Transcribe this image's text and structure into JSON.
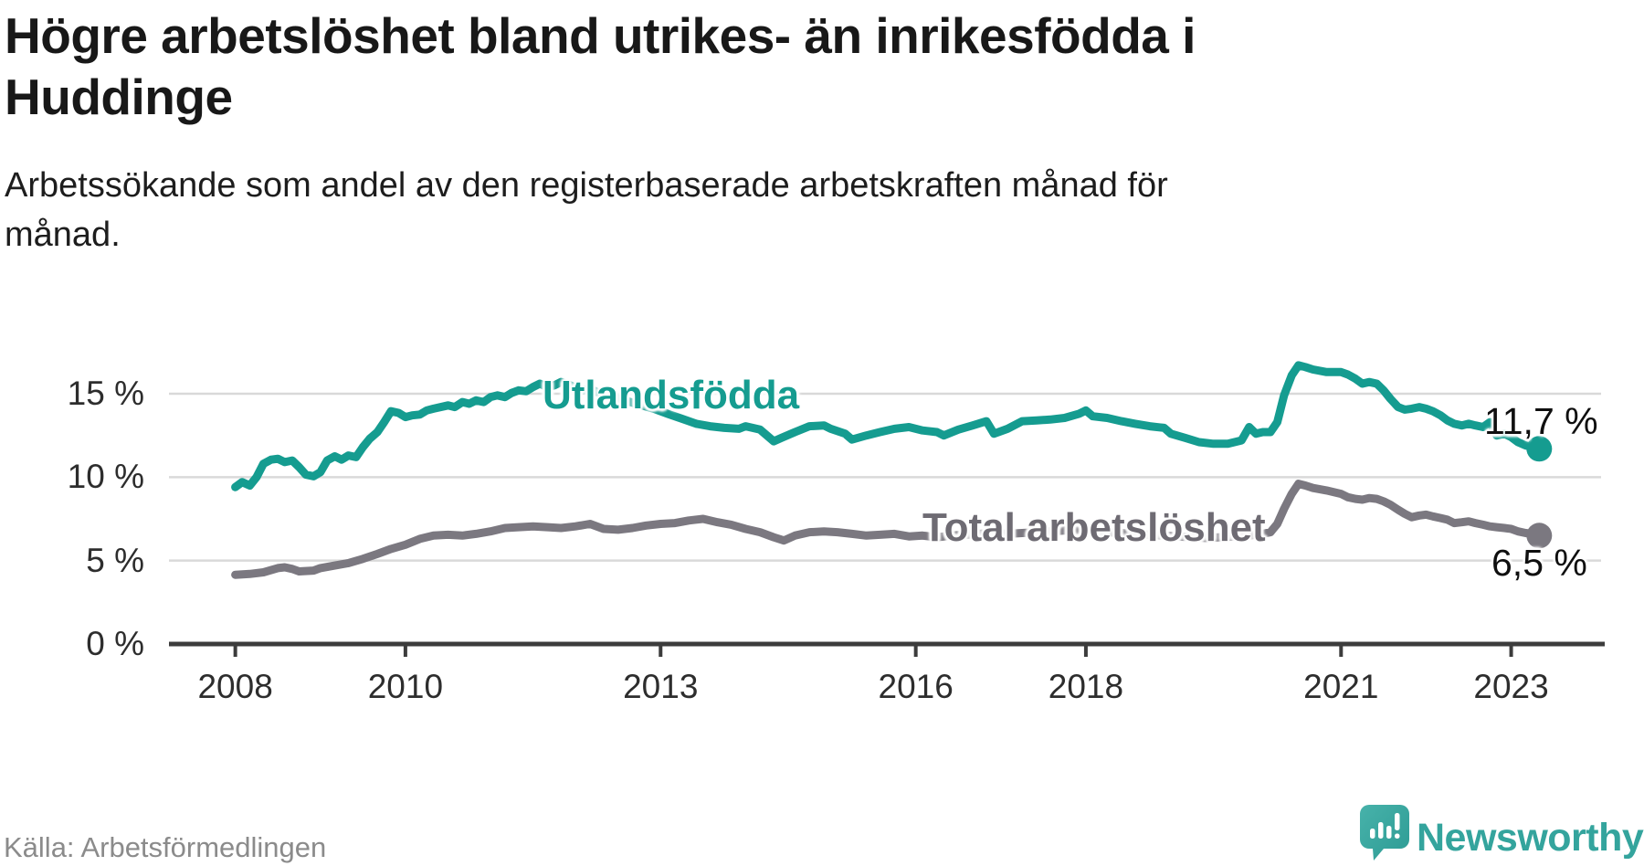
{
  "header": {
    "title_lines": [
      "Högre arbetslöshet bland utrikes- än inrikesfödda i",
      "Huddinge"
    ],
    "subtitle_lines": [
      "Arbetssökande som andel av den registerbaserade arbetskraften månad för",
      "månad."
    ]
  },
  "footer": {
    "source": "Källa: Arbetsförmedlingen"
  },
  "branding": {
    "name": "Newsworthy",
    "color": "#34A49D",
    "icon": "newsworthy-speech-bubble-chart-icon",
    "icon_color": "#3BAAA2"
  },
  "chart_data": {
    "type": "line",
    "title": "Högre arbetslöshet bland utrikes- än inrikesfödda i Huddinge",
    "subtitle": "Arbetssökande som andel av den registerbaserade arbetskraften månad för månad.",
    "source": "Källa: Arbetsförmedlingen",
    "unit": "%",
    "grid": true,
    "legend_position": "inline-labels",
    "colors": {
      "gridline": "#d9d9d9",
      "axis": "#3c3c3c",
      "tick_text": "#2d2d2d"
    },
    "x_axis": {
      "range": [
        2007.22,
        2024.1
      ],
      "ticks": [
        {
          "value": 2008,
          "label": "2008"
        },
        {
          "value": 2010,
          "label": "2010"
        },
        {
          "value": 2013,
          "label": "2013"
        },
        {
          "value": 2016,
          "label": "2016"
        },
        {
          "value": 2018,
          "label": "2018"
        },
        {
          "value": 2021,
          "label": "2021"
        },
        {
          "value": 2023,
          "label": "2023"
        }
      ]
    },
    "y_axis": {
      "range": [
        0,
        17.5
      ],
      "ticks": [
        {
          "value": 0,
          "label": "0 %"
        },
        {
          "value": 5,
          "label": "5 %"
        },
        {
          "value": 10,
          "label": "10 %"
        },
        {
          "value": 15,
          "label": "15 %"
        }
      ]
    },
    "series": [
      {
        "name": "Utlandsfödda",
        "color": "#159C90",
        "label_color": "#159C90",
        "end_value": 11.7,
        "end_label": "11,7 %",
        "points": [
          [
            2008.0,
            9.4
          ],
          [
            2008.08,
            9.7
          ],
          [
            2008.17,
            9.5
          ],
          [
            2008.25,
            10.0
          ],
          [
            2008.33,
            10.8
          ],
          [
            2008.42,
            11.05
          ],
          [
            2008.5,
            11.1
          ],
          [
            2008.58,
            10.9
          ],
          [
            2008.67,
            11.0
          ],
          [
            2008.75,
            10.6
          ],
          [
            2008.83,
            10.15
          ],
          [
            2008.92,
            10.05
          ],
          [
            2009.0,
            10.3
          ],
          [
            2009.08,
            11.0
          ],
          [
            2009.17,
            11.25
          ],
          [
            2009.25,
            11.05
          ],
          [
            2009.33,
            11.3
          ],
          [
            2009.42,
            11.2
          ],
          [
            2009.5,
            11.8
          ],
          [
            2009.58,
            12.3
          ],
          [
            2009.67,
            12.7
          ],
          [
            2009.75,
            13.3
          ],
          [
            2009.83,
            13.95
          ],
          [
            2009.92,
            13.85
          ],
          [
            2010.0,
            13.6
          ],
          [
            2010.08,
            13.7
          ],
          [
            2010.17,
            13.75
          ],
          [
            2010.25,
            14.0
          ],
          [
            2010.33,
            14.1
          ],
          [
            2010.5,
            14.3
          ],
          [
            2010.58,
            14.2
          ],
          [
            2010.67,
            14.5
          ],
          [
            2010.75,
            14.4
          ],
          [
            2010.83,
            14.6
          ],
          [
            2010.92,
            14.5
          ],
          [
            2011.0,
            14.8
          ],
          [
            2011.08,
            14.9
          ],
          [
            2011.17,
            14.8
          ],
          [
            2011.25,
            15.05
          ],
          [
            2011.33,
            15.2
          ],
          [
            2011.42,
            15.15
          ],
          [
            2011.5,
            15.4
          ],
          [
            2011.58,
            15.6
          ],
          [
            2011.67,
            15.4
          ],
          [
            2011.75,
            15.5
          ],
          [
            2011.83,
            15.7
          ],
          [
            2011.92,
            15.55
          ],
          [
            2012.0,
            15.35
          ],
          [
            2012.08,
            15.2
          ],
          [
            2012.17,
            15.3
          ],
          [
            2012.25,
            15.1
          ],
          [
            2012.42,
            14.85
          ],
          [
            2012.58,
            14.6
          ],
          [
            2012.75,
            14.35
          ],
          [
            2012.92,
            14.1
          ],
          [
            2013.08,
            13.8
          ],
          [
            2013.25,
            13.5
          ],
          [
            2013.42,
            13.2
          ],
          [
            2013.58,
            13.05
          ],
          [
            2013.75,
            12.95
          ],
          [
            2013.92,
            12.9
          ],
          [
            2014.0,
            13.05
          ],
          [
            2014.17,
            12.85
          ],
          [
            2014.33,
            12.15
          ],
          [
            2014.42,
            12.35
          ],
          [
            2014.58,
            12.7
          ],
          [
            2014.75,
            13.05
          ],
          [
            2014.92,
            13.1
          ],
          [
            2015.0,
            12.9
          ],
          [
            2015.17,
            12.6
          ],
          [
            2015.25,
            12.25
          ],
          [
            2015.42,
            12.5
          ],
          [
            2015.58,
            12.7
          ],
          [
            2015.75,
            12.9
          ],
          [
            2015.92,
            13.0
          ],
          [
            2016.08,
            12.8
          ],
          [
            2016.25,
            12.7
          ],
          [
            2016.33,
            12.5
          ],
          [
            2016.5,
            12.85
          ],
          [
            2016.67,
            13.1
          ],
          [
            2016.83,
            13.35
          ],
          [
            2016.92,
            12.6
          ],
          [
            2017.08,
            12.9
          ],
          [
            2017.25,
            13.35
          ],
          [
            2017.42,
            13.4
          ],
          [
            2017.58,
            13.45
          ],
          [
            2017.75,
            13.55
          ],
          [
            2017.92,
            13.8
          ],
          [
            2018.0,
            14.0
          ],
          [
            2018.08,
            13.65
          ],
          [
            2018.25,
            13.55
          ],
          [
            2018.42,
            13.35
          ],
          [
            2018.58,
            13.2
          ],
          [
            2018.75,
            13.05
          ],
          [
            2018.92,
            12.95
          ],
          [
            2019.0,
            12.6
          ],
          [
            2019.17,
            12.35
          ],
          [
            2019.33,
            12.1
          ],
          [
            2019.5,
            12.0
          ],
          [
            2019.67,
            12.0
          ],
          [
            2019.83,
            12.2
          ],
          [
            2019.92,
            13.0
          ],
          [
            2020.0,
            12.6
          ],
          [
            2020.08,
            12.7
          ],
          [
            2020.17,
            12.7
          ],
          [
            2020.25,
            13.3
          ],
          [
            2020.33,
            14.9
          ],
          [
            2020.42,
            16.1
          ],
          [
            2020.5,
            16.7
          ],
          [
            2020.58,
            16.6
          ],
          [
            2020.67,
            16.45
          ],
          [
            2020.83,
            16.3
          ],
          [
            2021.0,
            16.3
          ],
          [
            2021.08,
            16.15
          ],
          [
            2021.17,
            15.9
          ],
          [
            2021.25,
            15.6
          ],
          [
            2021.33,
            15.7
          ],
          [
            2021.42,
            15.6
          ],
          [
            2021.5,
            15.2
          ],
          [
            2021.58,
            14.7
          ],
          [
            2021.67,
            14.2
          ],
          [
            2021.75,
            14.05
          ],
          [
            2021.83,
            14.1
          ],
          [
            2021.92,
            14.2
          ],
          [
            2022.0,
            14.1
          ],
          [
            2022.08,
            13.95
          ],
          [
            2022.17,
            13.7
          ],
          [
            2022.25,
            13.4
          ],
          [
            2022.33,
            13.2
          ],
          [
            2022.42,
            13.1
          ],
          [
            2022.5,
            13.2
          ],
          [
            2022.58,
            13.1
          ],
          [
            2022.67,
            13.0
          ],
          [
            2022.75,
            13.3
          ],
          [
            2022.83,
            12.5
          ],
          [
            2022.92,
            12.6
          ],
          [
            2023.0,
            12.4
          ],
          [
            2023.08,
            12.1
          ],
          [
            2023.17,
            11.9
          ],
          [
            2023.33,
            11.7
          ]
        ]
      },
      {
        "name": "Total arbetslöshet",
        "color": "#7B7880",
        "label_color": "#6E6B73",
        "end_value": 6.5,
        "end_label": "6,5 %",
        "points": [
          [
            2008.0,
            4.15
          ],
          [
            2008.17,
            4.2
          ],
          [
            2008.33,
            4.3
          ],
          [
            2008.5,
            4.55
          ],
          [
            2008.58,
            4.6
          ],
          [
            2008.67,
            4.5
          ],
          [
            2008.75,
            4.35
          ],
          [
            2008.92,
            4.4
          ],
          [
            2009.0,
            4.55
          ],
          [
            2009.17,
            4.7
          ],
          [
            2009.33,
            4.85
          ],
          [
            2009.5,
            5.1
          ],
          [
            2009.67,
            5.4
          ],
          [
            2009.83,
            5.7
          ],
          [
            2010.0,
            5.95
          ],
          [
            2010.17,
            6.3
          ],
          [
            2010.33,
            6.5
          ],
          [
            2010.5,
            6.55
          ],
          [
            2010.67,
            6.5
          ],
          [
            2010.83,
            6.6
          ],
          [
            2011.0,
            6.75
          ],
          [
            2011.17,
            6.95
          ],
          [
            2011.33,
            7.0
          ],
          [
            2011.5,
            7.05
          ],
          [
            2011.67,
            7.0
          ],
          [
            2011.83,
            6.95
          ],
          [
            2012.0,
            7.05
          ],
          [
            2012.17,
            7.2
          ],
          [
            2012.33,
            6.9
          ],
          [
            2012.5,
            6.85
          ],
          [
            2012.67,
            6.95
          ],
          [
            2012.83,
            7.1
          ],
          [
            2013.0,
            7.2
          ],
          [
            2013.17,
            7.25
          ],
          [
            2013.33,
            7.4
          ],
          [
            2013.5,
            7.5
          ],
          [
            2013.67,
            7.3
          ],
          [
            2013.83,
            7.15
          ],
          [
            2014.0,
            6.9
          ],
          [
            2014.17,
            6.7
          ],
          [
            2014.33,
            6.4
          ],
          [
            2014.45,
            6.2
          ],
          [
            2014.58,
            6.5
          ],
          [
            2014.75,
            6.7
          ],
          [
            2014.92,
            6.75
          ],
          [
            2015.08,
            6.7
          ],
          [
            2015.25,
            6.6
          ],
          [
            2015.42,
            6.5
          ],
          [
            2015.58,
            6.55
          ],
          [
            2015.75,
            6.6
          ],
          [
            2015.92,
            6.45
          ],
          [
            2016.08,
            6.5
          ],
          [
            2016.25,
            6.4
          ],
          [
            2016.42,
            6.5
          ],
          [
            2016.58,
            6.55
          ],
          [
            2016.75,
            6.6
          ],
          [
            2016.92,
            6.65
          ],
          [
            2017.08,
            6.6
          ],
          [
            2017.25,
            6.65
          ],
          [
            2017.42,
            6.7
          ],
          [
            2017.58,
            6.75
          ],
          [
            2017.75,
            6.8
          ],
          [
            2017.92,
            6.8
          ],
          [
            2018.08,
            6.75
          ],
          [
            2018.25,
            6.7
          ],
          [
            2018.42,
            6.65
          ],
          [
            2018.58,
            6.6
          ],
          [
            2018.75,
            6.55
          ],
          [
            2018.92,
            6.5
          ],
          [
            2019.08,
            6.45
          ],
          [
            2019.25,
            6.4
          ],
          [
            2019.42,
            6.35
          ],
          [
            2019.58,
            6.4
          ],
          [
            2019.75,
            6.45
          ],
          [
            2019.92,
            6.5
          ],
          [
            2020.08,
            6.6
          ],
          [
            2020.17,
            6.7
          ],
          [
            2020.25,
            7.2
          ],
          [
            2020.33,
            8.1
          ],
          [
            2020.42,
            9.0
          ],
          [
            2020.5,
            9.6
          ],
          [
            2020.58,
            9.5
          ],
          [
            2020.67,
            9.35
          ],
          [
            2020.83,
            9.2
          ],
          [
            2021.0,
            9.0
          ],
          [
            2021.08,
            8.8
          ],
          [
            2021.17,
            8.7
          ],
          [
            2021.25,
            8.65
          ],
          [
            2021.33,
            8.75
          ],
          [
            2021.42,
            8.7
          ],
          [
            2021.5,
            8.55
          ],
          [
            2021.58,
            8.35
          ],
          [
            2021.67,
            8.05
          ],
          [
            2021.75,
            7.8
          ],
          [
            2021.83,
            7.6
          ],
          [
            2021.92,
            7.7
          ],
          [
            2022.0,
            7.75
          ],
          [
            2022.08,
            7.65
          ],
          [
            2022.17,
            7.55
          ],
          [
            2022.25,
            7.45
          ],
          [
            2022.33,
            7.25
          ],
          [
            2022.42,
            7.3
          ],
          [
            2022.5,
            7.35
          ],
          [
            2022.58,
            7.25
          ],
          [
            2022.67,
            7.15
          ],
          [
            2022.75,
            7.05
          ],
          [
            2022.83,
            7.0
          ],
          [
            2022.92,
            6.95
          ],
          [
            2023.0,
            6.9
          ],
          [
            2023.08,
            6.75
          ],
          [
            2023.17,
            6.65
          ],
          [
            2023.25,
            6.6
          ],
          [
            2023.33,
            6.5
          ]
        ]
      }
    ]
  }
}
